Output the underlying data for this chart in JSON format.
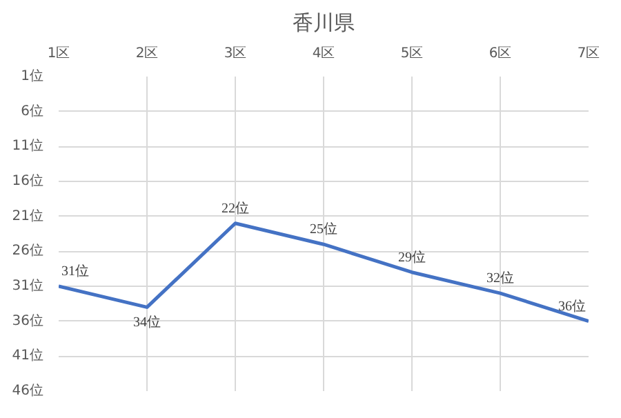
{
  "chart_data": {
    "type": "line",
    "title": "香川県",
    "categories": [
      "1区",
      "2区",
      "3区",
      "4区",
      "5区",
      "6区",
      "7区"
    ],
    "series": [
      {
        "color": "#4472c4",
        "values": [
          31,
          34,
          22,
          25,
          29,
          32,
          36
        ],
        "value_labels": [
          "31位",
          "34位",
          "22位",
          "25位",
          "29位",
          "32位",
          "36位"
        ]
      }
    ],
    "ylim": [
      46,
      1
    ],
    "yticks": [
      {
        "value": 1,
        "label": "1位"
      },
      {
        "value": 6,
        "label": "6位"
      },
      {
        "value": 11,
        "label": "11位"
      },
      {
        "value": 16,
        "label": "16位"
      },
      {
        "value": 21,
        "label": "21位"
      },
      {
        "value": 26,
        "label": "26位"
      },
      {
        "value": 31,
        "label": "31位"
      },
      {
        "value": 36,
        "label": "36位"
      },
      {
        "value": 41,
        "label": "41位"
      },
      {
        "value": 46,
        "label": "46位"
      }
    ],
    "grid": true,
    "marker": "none",
    "line_style": "solid"
  }
}
